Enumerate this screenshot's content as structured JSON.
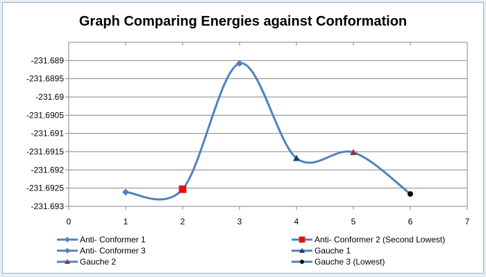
{
  "chart_data": {
    "type": "line",
    "title": "Graph Comparing Energies against Conformation",
    "xlabel": "",
    "ylabel": "",
    "xlim": [
      0,
      7
    ],
    "ylim": [
      -231.693,
      -231.6885
    ],
    "x_ticks": [
      "0",
      "1",
      "2",
      "3",
      "4",
      "5",
      "6",
      "7"
    ],
    "y_ticks": [
      "-231.689",
      "-231.6895",
      "-231.69",
      "-231.6905",
      "-231.691",
      "-231.6915",
      "-231.692",
      "-231.6925",
      "-231.693"
    ],
    "y_tick_values": [
      -231.689,
      -231.6895,
      -231.69,
      -231.6905,
      -231.691,
      -231.6915,
      -231.692,
      -231.6925,
      -231.693
    ],
    "grid": true,
    "smooth": true,
    "line_color": "#4f81bd",
    "legend_position": "bottom",
    "series": [
      {
        "name": "Anti- Conformer 1",
        "x": 1,
        "y": -231.69261,
        "marker": "diamond",
        "color": "#4f81bd"
      },
      {
        "name": "Anti- Conformer 2 (Second Lowest)",
        "x": 2,
        "y": -231.69253,
        "marker": "square",
        "color": "#ff0000"
      },
      {
        "name": "Anti- Conformer 3",
        "x": 3,
        "y": -231.68908,
        "marker": "diamond",
        "color": "#4f81bd"
      },
      {
        "name": "Gauche 1",
        "x": 4,
        "y": -231.69168,
        "marker": "triangle",
        "color": "#1f3d6b"
      },
      {
        "name": "Gauche 2",
        "x": 5,
        "y": -231.69152,
        "marker": "triangle",
        "color": "#8b3a4a"
      },
      {
        "name": "Gauche 3 (Lowest)",
        "x": 6,
        "y": -231.69266,
        "marker": "circle",
        "color": "#000000"
      }
    ],
    "legend_order": [
      0,
      1,
      2,
      3,
      4,
      5
    ]
  }
}
